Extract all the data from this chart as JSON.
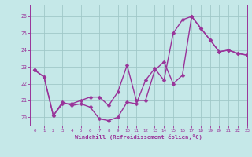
{
  "background_color": "#c5e8e8",
  "grid_color": "#a0c8c8",
  "line_color": "#993399",
  "marker": "D",
  "marker_size": 2.5,
  "line_width": 1.0,
  "xlim": [
    -0.5,
    23
  ],
  "ylim": [
    19.5,
    26.7
  ],
  "xticks": [
    0,
    1,
    2,
    3,
    4,
    5,
    6,
    7,
    8,
    9,
    10,
    11,
    12,
    13,
    14,
    15,
    16,
    17,
    18,
    19,
    20,
    21,
    22,
    23
  ],
  "yticks": [
    20,
    21,
    22,
    23,
    24,
    25,
    26
  ],
  "xlabel": "Windchill (Refroidissement éolien,°C)",
  "series": [
    [
      22.8,
      22.4,
      20.1,
      20.9,
      20.7,
      20.8,
      20.6,
      19.9,
      19.8,
      20.0,
      20.9,
      20.8,
      22.2,
      22.9,
      22.2,
      25.0,
      25.8,
      26.0,
      25.3,
      24.6,
      23.9,
      24.0,
      23.8,
      23.7
    ],
    [
      22.8,
      null,
      null,
      null,
      null,
      null,
      null,
      null,
      null,
      null,
      null,
      null,
      null,
      null,
      null,
      null,
      null,
      26.0,
      25.3,
      24.6,
      23.9,
      24.0,
      23.8,
      23.7
    ],
    [
      22.8,
      22.4,
      20.1,
      20.8,
      20.8,
      21.0,
      21.2,
      21.2,
      20.7,
      21.5,
      23.1,
      21.0,
      21.0,
      22.8,
      23.3,
      22.0,
      22.5,
      26.0,
      null,
      null,
      null,
      null,
      null,
      null
    ]
  ]
}
